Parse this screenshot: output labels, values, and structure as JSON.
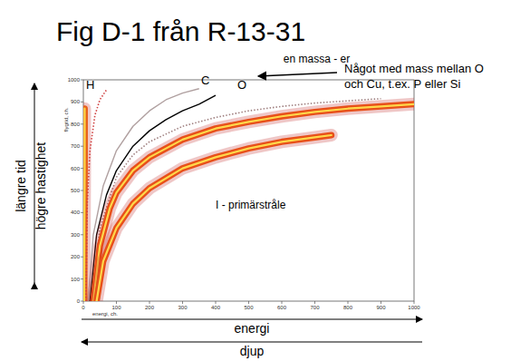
{
  "chart_data": {
    "type": "line",
    "title": "Fig D-1 från R-13-31",
    "x_label": "energi, ch.",
    "y_label": "flygtid, ch.",
    "xlim": [
      0,
      1000
    ],
    "ylim": [
      0,
      1000
    ],
    "xticks": [
      0,
      100,
      200,
      300,
      400,
      500,
      600,
      700,
      800,
      900,
      1000
    ],
    "yticks": [
      0,
      100,
      200,
      300,
      400,
      500,
      600,
      700,
      800,
      900,
      1000
    ],
    "grid": false,
    "series": [
      {
        "color": "#e8601c",
        "line_style": "solid",
        "type": "band",
        "x": [
          3,
          3,
          4,
          4
        ],
        "values": [
          0,
          300,
          600,
          870
        ]
      },
      {
        "color": "#d04040",
        "line_style": "dotted",
        "x": [
          8,
          12,
          20,
          35,
          50,
          70
        ],
        "values": [
          0,
          450,
          680,
          840,
          910,
          955
        ]
      },
      {
        "color": "#b0a0a0",
        "line_style": "solid",
        "x": [
          15,
          30,
          60,
          100,
          150,
          200,
          250,
          300,
          350
        ],
        "values": [
          0,
          300,
          520,
          680,
          790,
          860,
          910,
          940,
          960
        ]
      },
      {
        "color": "#000000",
        "line_style": "solid",
        "x": [
          20,
          40,
          70,
          100,
          150,
          200,
          250,
          300,
          350,
          400
        ],
        "values": [
          0,
          300,
          480,
          590,
          700,
          770,
          820,
          860,
          890,
          930
        ]
      },
      {
        "color": "#a08080",
        "line_style": "dotted",
        "x": [
          25,
          50,
          100,
          150,
          200,
          300,
          400,
          500,
          600,
          700,
          800,
          900
        ],
        "values": [
          0,
          330,
          560,
          660,
          720,
          790,
          830,
          860,
          880,
          895,
          905,
          915
        ]
      },
      {
        "color": "#e8501a",
        "line_style": "solid",
        "type": "band",
        "x": [
          30,
          50,
          80,
          100,
          150,
          200,
          300,
          400,
          500,
          600,
          700,
          800,
          900,
          1000
        ],
        "values": [
          0,
          250,
          420,
          490,
          590,
          650,
          730,
          780,
          810,
          835,
          855,
          870,
          880,
          890
        ]
      },
      {
        "color": "#e8501a",
        "line_style": "solid",
        "type": "band",
        "x": [
          40,
          60,
          100,
          150,
          200,
          300,
          400,
          500,
          600,
          700,
          750
        ],
        "values": [
          0,
          180,
          330,
          440,
          510,
          600,
          650,
          690,
          720,
          740,
          750
        ]
      }
    ],
    "annotations": [
      {
        "text": "H",
        "x": 8,
        "y": 960
      },
      {
        "text": "C",
        "x": 356,
        "y": 980
      },
      {
        "text": "O",
        "x": 466,
        "y": 960
      },
      {
        "text": "en massa - er",
        "x": 605,
        "y": 1078
      },
      {
        "text": "I - primärstråle",
        "x": 400,
        "y": 420
      }
    ],
    "note": [
      "Något med mass mellan O",
      "och Cu, t.ex. P eller Si"
    ],
    "side_labels": [
      "längre tid",
      "högre hastighet"
    ],
    "bottom_labels": [
      "energi",
      "djup"
    ]
  }
}
